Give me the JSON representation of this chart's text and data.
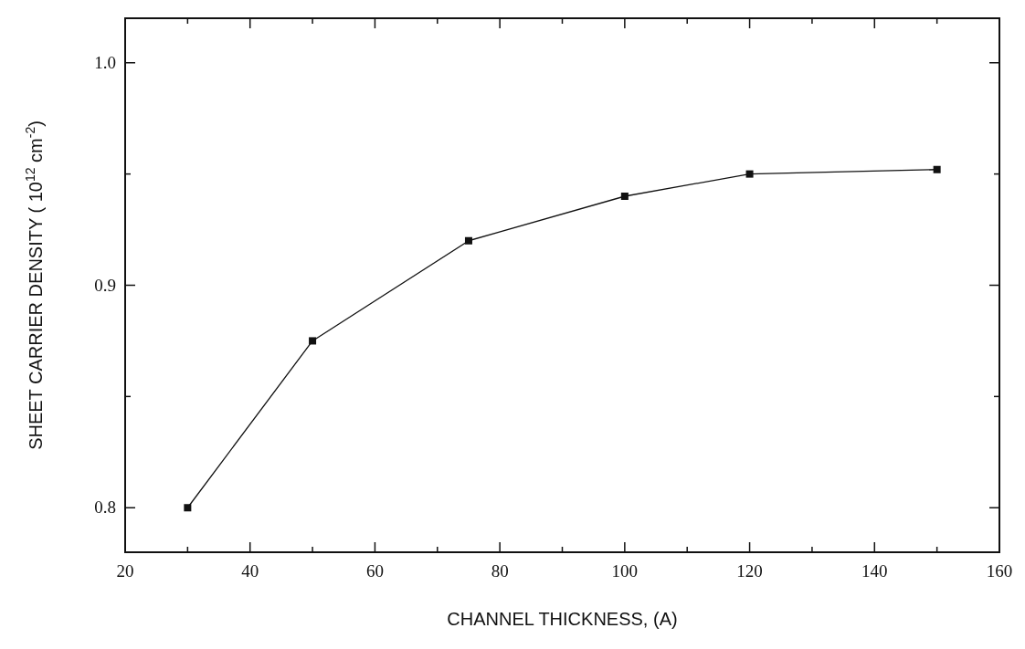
{
  "chart_data": {
    "type": "line",
    "xlabel": "CHANNEL THICKNESS, (A)",
    "ylabel": "SHEET CARRIER DENSITY ( 10$^{12}$ cm$^{-2}$)",
    "x": [
      30,
      50,
      75,
      100,
      120,
      150
    ],
    "series": [
      {
        "color": "#111111",
        "values": [
          0.8,
          0.875,
          0.92,
          0.94,
          0.95,
          0.952
        ]
      }
    ],
    "xlim": [
      20,
      160
    ],
    "ylim": [
      0.78,
      1.02
    ],
    "xticks": [
      20,
      {
        "value": 30,
        "label": null
      },
      40,
      {
        "value": 50,
        "label": null
      },
      60,
      {
        "value": 70,
        "label": null
      },
      80,
      {
        "value": 90,
        "label": null
      },
      100,
      {
        "value": 110,
        "label": null
      },
      120,
      {
        "value": 130,
        "label": null
      },
      140,
      {
        "value": 150,
        "label": null
      },
      160
    ],
    "yticks": [
      {
        "value": 0.8,
        "label": "0.8"
      },
      {
        "value": 0.85,
        "label": null
      },
      {
        "value": 0.9,
        "label": "0.9"
      },
      {
        "value": 0.95,
        "label": null
      },
      {
        "value": 1.0,
        "label": "1.0"
      }
    ],
    "marker": "square",
    "line_style": "solid",
    "grid": false
  }
}
